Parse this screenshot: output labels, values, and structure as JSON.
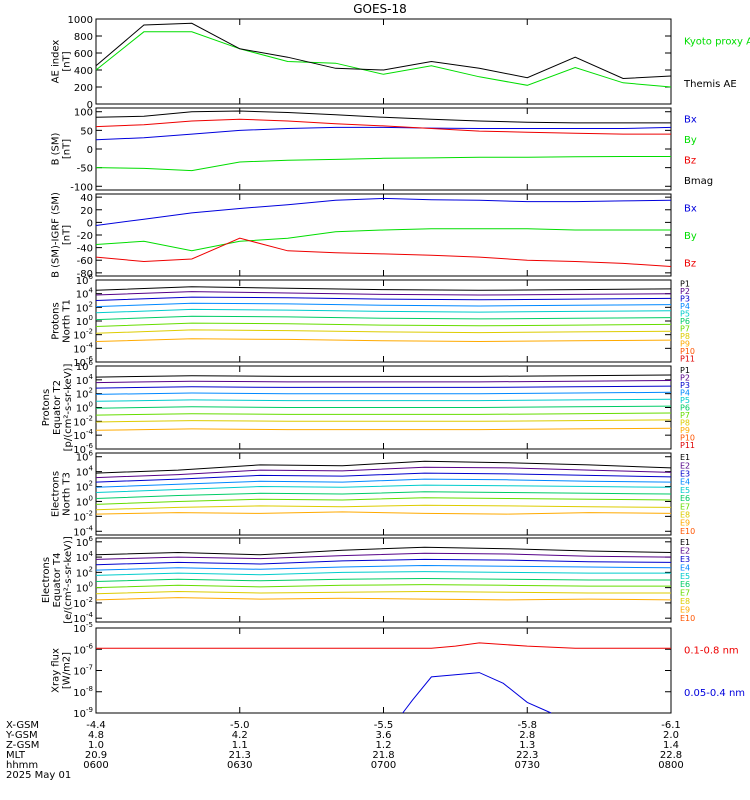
{
  "title": "GOES-18",
  "colors": {
    "black": "#000000",
    "red": "#ee0000",
    "green": "#00dd00",
    "blue": "#0000dd",
    "ch": [
      "#000000",
      "#550088",
      "#0000cc",
      "#0088ff",
      "#00cccc",
      "#00cc66",
      "#66dd00",
      "#ddcc00",
      "#ffaa00",
      "#ff5500",
      "#dd0000"
    ]
  },
  "footer": {
    "labels": [
      "X-GSM",
      "Y-GSM",
      "Z-GSM",
      "MLT",
      "hhmm",
      "2025 May 01"
    ],
    "columns": [
      [
        "-4.4",
        "4.8",
        "1.0",
        "20.9",
        "0600"
      ],
      [
        "-5.0",
        "4.2",
        "1.1",
        "21.3",
        "0630"
      ],
      [
        "-5.5",
        "3.6",
        "1.2",
        "21.8",
        "0700"
      ],
      [
        "-5.8",
        "2.8",
        "1.3",
        "22.3",
        "0730"
      ],
      [
        "-6.1",
        "2.0",
        "1.4",
        "22.8",
        "0800"
      ]
    ]
  },
  "chart_data": [
    {
      "type": "line",
      "ylabel": [
        "AE index",
        "[nT]"
      ],
      "yticks": [
        "1000",
        "800",
        "600",
        "400",
        "200",
        "0"
      ],
      "ylim": [
        0,
        1000
      ],
      "x": [
        "0600",
        "0610",
        "0620",
        "0630",
        "0640",
        "0650",
        "0700",
        "0710",
        "0720",
        "0730",
        "0740",
        "0750",
        "0800"
      ],
      "series": [
        {
          "name": "Kyoto proxy AE",
          "color": "green",
          "values": [
            400,
            850,
            850,
            650,
            500,
            480,
            350,
            450,
            320,
            220,
            430,
            250,
            200
          ]
        },
        {
          "name": "Themis AE",
          "color": "black",
          "values": [
            450,
            930,
            950,
            650,
            550,
            420,
            400,
            500,
            420,
            310,
            550,
            300,
            330
          ]
        }
      ],
      "legend": [
        "Kyoto proxy AE",
        "Themis AE"
      ]
    },
    {
      "type": "line",
      "ylabel": [
        "B (SM)",
        "[nT]"
      ],
      "yticks": [
        "100",
        "50",
        "0",
        "-50",
        "-100"
      ],
      "ylim": [
        -110,
        110
      ],
      "x": [
        "0600",
        "0610",
        "0620",
        "0630",
        "0640",
        "0650",
        "0700",
        "0710",
        "0720",
        "0730",
        "0740",
        "0750",
        "0800"
      ],
      "series": [
        {
          "name": "Bx",
          "color": "blue",
          "values": [
            25,
            30,
            40,
            50,
            55,
            58,
            58,
            56,
            55,
            55,
            55,
            55,
            58
          ]
        },
        {
          "name": "By",
          "color": "green",
          "values": [
            -50,
            -52,
            -58,
            -35,
            -30,
            -28,
            -25,
            -24,
            -22,
            -22,
            -21,
            -20,
            -20
          ]
        },
        {
          "name": "Bz",
          "color": "red",
          "values": [
            60,
            65,
            75,
            80,
            75,
            68,
            62,
            55,
            48,
            45,
            42,
            40,
            40
          ]
        },
        {
          "name": "Bmag",
          "color": "black",
          "values": [
            85,
            88,
            100,
            102,
            98,
            92,
            85,
            80,
            75,
            72,
            70,
            70,
            70
          ]
        }
      ],
      "legend": [
        "Bx",
        "By",
        "Bz",
        "Bmag"
      ]
    },
    {
      "type": "line",
      "ylabel": [
        "B (SM)-IGRF (SM)",
        "[nT]"
      ],
      "yticks": [
        "40",
        "20",
        "0",
        "-20",
        "-40",
        "-60",
        "-80"
      ],
      "ylim": [
        -85,
        45
      ],
      "x": [
        "0600",
        "0610",
        "0620",
        "0630",
        "0640",
        "0650",
        "0700",
        "0710",
        "0720",
        "0730",
        "0740",
        "0750",
        "0800"
      ],
      "series": [
        {
          "name": "Bx",
          "color": "blue",
          "values": [
            -5,
            5,
            15,
            22,
            28,
            35,
            38,
            36,
            35,
            33,
            33,
            34,
            35
          ]
        },
        {
          "name": "By",
          "color": "green",
          "values": [
            -35,
            -30,
            -45,
            -30,
            -25,
            -15,
            -12,
            -10,
            -10,
            -10,
            -12,
            -12,
            -12
          ]
        },
        {
          "name": "Bz",
          "color": "red",
          "values": [
            -55,
            -62,
            -58,
            -25,
            -45,
            -48,
            -50,
            -52,
            -55,
            -60,
            -62,
            -65,
            -70
          ]
        }
      ],
      "legend": [
        "Bx",
        "By",
        "Bz"
      ]
    },
    {
      "type": "line",
      "ylabel": [
        "Protons",
        "North T1"
      ],
      "yticks": [
        "10^6",
        "10^4",
        "10^2",
        "10^0",
        "10^-2",
        "10^-4",
        "10^-6"
      ],
      "ylim": [
        -6,
        6
      ],
      "scale": "log",
      "series": [
        {
          "name": "P1",
          "values": [
            4.5,
            5,
            4.8,
            4.6,
            4.5,
            4.6,
            4.7
          ]
        },
        {
          "name": "P2",
          "values": [
            3.8,
            4.3,
            4.1,
            3.9,
            3.8,
            3.9,
            4.0
          ]
        },
        {
          "name": "P3",
          "values": [
            3.0,
            3.5,
            3.4,
            3.2,
            3.1,
            3.2,
            3.3
          ]
        },
        {
          "name": "P4",
          "values": [
            2.1,
            2.6,
            2.5,
            2.3,
            2.2,
            2.3,
            2.4
          ]
        },
        {
          "name": "P5",
          "values": [
            1.2,
            1.7,
            1.6,
            1.4,
            1.3,
            1.4,
            1.5
          ]
        },
        {
          "name": "P6",
          "values": [
            0.2,
            0.7,
            0.6,
            0.4,
            0.3,
            0.4,
            0.5
          ]
        },
        {
          "name": "P7",
          "values": [
            -0.8,
            -0.3,
            -0.4,
            -0.6,
            -0.7,
            -0.6,
            -0.5
          ]
        },
        {
          "name": "P8",
          "values": [
            -1.8,
            -1.3,
            -1.4,
            -1.6,
            -1.7,
            -1.6,
            -1.5
          ]
        },
        {
          "name": "P9",
          "values": [
            -3.0,
            -2.6,
            -2.7,
            -2.9,
            -3.0,
            -2.9,
            -2.8
          ]
        }
      ],
      "legend": [
        "P1",
        "P2",
        "P3",
        "P4",
        "P5",
        "P6",
        "P7",
        "P8",
        "P9",
        "P10",
        "P11"
      ]
    },
    {
      "type": "line",
      "ylabel": [
        "Protons",
        "Equator T2",
        "[p/(cm²-s-sr-keV)]"
      ],
      "yticks": [
        "10^6",
        "10^4",
        "10^2",
        "10^0",
        "10^-2",
        "10^-4",
        "10^-6"
      ],
      "ylim": [
        -6,
        6
      ],
      "scale": "log",
      "series": [
        {
          "name": "P1",
          "values": [
            4.4,
            4.6,
            4.5,
            4.5,
            4.5,
            4.6,
            4.7
          ]
        },
        {
          "name": "P2",
          "values": [
            3.6,
            3.8,
            3.7,
            3.7,
            3.7,
            3.8,
            3.9
          ]
        },
        {
          "name": "P3",
          "values": [
            2.8,
            3.0,
            2.9,
            2.9,
            2.9,
            3.0,
            3.1
          ]
        },
        {
          "name": "P4",
          "values": [
            1.9,
            2.1,
            2.0,
            2.0,
            2.0,
            2.1,
            2.2
          ]
        },
        {
          "name": "P5",
          "values": [
            0.9,
            1.1,
            1.0,
            1.0,
            1.0,
            1.1,
            1.2
          ]
        },
        {
          "name": "P6",
          "values": [
            -0.1,
            0.1,
            0.0,
            0.0,
            0.0,
            0.1,
            0.2
          ]
        },
        {
          "name": "P7",
          "values": [
            -1.1,
            -0.9,
            -1.0,
            -1.0,
            -1.0,
            -0.9,
            -0.8
          ]
        },
        {
          "name": "P8",
          "values": [
            -2.1,
            -1.9,
            -2.0,
            -2.0,
            -2.0,
            -1.9,
            -1.8
          ]
        },
        {
          "name": "P9",
          "values": [
            -3.3,
            -3.1,
            -3.2,
            -3.2,
            -3.2,
            -3.1,
            -3.0
          ]
        }
      ],
      "legend": [
        "P1",
        "P2",
        "P3",
        "P4",
        "P5",
        "P6",
        "P7",
        "P8",
        "P9",
        "P10",
        "P11"
      ]
    },
    {
      "type": "line",
      "ylabel": [
        "Electrons",
        "North T3"
      ],
      "yticks": [
        "10^6",
        "10^4",
        "10^2",
        "10^0",
        "10^-2",
        "10^-4"
      ],
      "ylim": [
        -4.5,
        6.5
      ],
      "scale": "log",
      "series": [
        {
          "name": "E1",
          "values": [
            3.8,
            4.2,
            4.9,
            4.8,
            5.4,
            5.2,
            4.9,
            4.5
          ]
        },
        {
          "name": "E2",
          "values": [
            3.2,
            3.6,
            4.2,
            4.1,
            4.6,
            4.5,
            4.2,
            3.9
          ]
        },
        {
          "name": "E3",
          "values": [
            2.6,
            3.0,
            3.5,
            3.4,
            3.8,
            3.7,
            3.5,
            3.3
          ]
        },
        {
          "name": "E4",
          "values": [
            1.9,
            2.3,
            2.7,
            2.6,
            3.0,
            2.9,
            2.7,
            2.6
          ]
        },
        {
          "name": "E5",
          "values": [
            1.2,
            1.6,
            2.0,
            1.9,
            2.2,
            2.1,
            2.0,
            1.9
          ]
        },
        {
          "name": "E6",
          "values": [
            0.4,
            0.8,
            1.1,
            1.0,
            1.3,
            1.2,
            1.1,
            1.0
          ]
        },
        {
          "name": "E7",
          "values": [
            -0.4,
            0.0,
            0.3,
            0.2,
            0.5,
            0.4,
            0.3,
            0.2
          ]
        },
        {
          "name": "E8",
          "values": [
            -1.1,
            -0.8,
            -0.6,
            -0.7,
            -0.5,
            -0.6,
            -0.7,
            -0.8
          ]
        },
        {
          "name": "E9",
          "values": [
            -1.7,
            -1.5,
            -1.6,
            -1.4,
            -1.6,
            -1.7,
            -1.5,
            -1.6
          ]
        }
      ],
      "legend": [
        "E1",
        "E2",
        "E3",
        "E4",
        "E5",
        "E6",
        "E7",
        "E8",
        "E9",
        "E10"
      ]
    },
    {
      "type": "line",
      "ylabel": [
        "Electrons",
        "Equator T4",
        "[e/(cm²-s-sr-keV)]"
      ],
      "yticks": [
        "10^6",
        "10^4",
        "10^2",
        "10^0",
        "10^-2",
        "10^-4"
      ],
      "ylim": [
        -4.5,
        6.5
      ],
      "scale": "log",
      "series": [
        {
          "name": "E1",
          "values": [
            4.3,
            4.6,
            4.3,
            4.9,
            5.3,
            5.1,
            4.8,
            4.6
          ]
        },
        {
          "name": "E2",
          "values": [
            3.7,
            4.0,
            3.8,
            4.2,
            4.5,
            4.4,
            4.1,
            4.0
          ]
        },
        {
          "name": "E3",
          "values": [
            3.0,
            3.3,
            3.1,
            3.5,
            3.7,
            3.6,
            3.4,
            3.3
          ]
        },
        {
          "name": "E4",
          "values": [
            2.3,
            2.6,
            2.4,
            2.7,
            2.9,
            2.8,
            2.7,
            2.6
          ]
        },
        {
          "name": "E5",
          "values": [
            1.6,
            1.9,
            1.7,
            2.0,
            2.1,
            2.0,
            1.9,
            1.9
          ]
        },
        {
          "name": "E6",
          "values": [
            0.8,
            1.1,
            0.9,
            1.1,
            1.2,
            1.1,
            1.0,
            1.0
          ]
        },
        {
          "name": "E7",
          "values": [
            0.0,
            0.3,
            0.1,
            0.3,
            0.4,
            0.3,
            0.2,
            0.2
          ]
        },
        {
          "name": "E8",
          "values": [
            -0.8,
            -0.5,
            -0.7,
            -0.6,
            -0.5,
            -0.6,
            -0.7,
            -0.7
          ]
        },
        {
          "name": "E9",
          "values": [
            -1.6,
            -1.3,
            -1.5,
            -1.4,
            -1.5,
            -1.6,
            -1.5,
            -1.6
          ]
        }
      ],
      "legend": [
        "E1",
        "E2",
        "E3",
        "E4",
        "E5",
        "E6",
        "E7",
        "E8",
        "E9",
        "E10"
      ]
    },
    {
      "type": "line",
      "ylabel": [
        "Xray flux",
        "[W/m2]"
      ],
      "yticks": [
        "10^-5",
        "10^-6",
        "10^-7",
        "10^-8",
        "10^-9"
      ],
      "ylim": [
        -9,
        -5
      ],
      "scale": "log",
      "series": [
        {
          "name": "0.1-0.8 nm",
          "color": "red",
          "x": [
            "0600",
            "0620",
            "0640",
            "0700",
            "0710",
            "0715",
            "0720",
            "0730",
            "0740",
            "0800"
          ],
          "values": [
            -5.95,
            -5.95,
            -5.95,
            -5.95,
            -5.95,
            -5.85,
            -5.7,
            -5.85,
            -5.95,
            -5.95
          ]
        },
        {
          "name": "0.05-0.4 nm",
          "color": "blue",
          "x": [
            "0704",
            "0706",
            "0710",
            "0715",
            "0720",
            "0725",
            "0730",
            "0735"
          ],
          "values": [
            -9.0,
            -8.4,
            -7.3,
            -7.2,
            -7.1,
            -7.6,
            -8.5,
            -9.0
          ]
        }
      ],
      "legend": [
        "0.1-0.8 nm",
        "0.05-0.4 nm"
      ]
    }
  ]
}
